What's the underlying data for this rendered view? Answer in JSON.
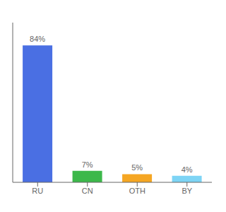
{
  "chart_data": {
    "type": "bar",
    "categories": [
      "RU",
      "CN",
      "OTH",
      "BY"
    ],
    "values": [
      84,
      7,
      5,
      4
    ],
    "value_labels": [
      "84%",
      "7%",
      "5%",
      "4%"
    ],
    "data_labels": true,
    "colors": [
      "#4A6FE3",
      "#3CB84A",
      "#F5A623",
      "#7DD4F5"
    ],
    "ylim": [
      0,
      98
    ],
    "tick_labels": "x"
  }
}
